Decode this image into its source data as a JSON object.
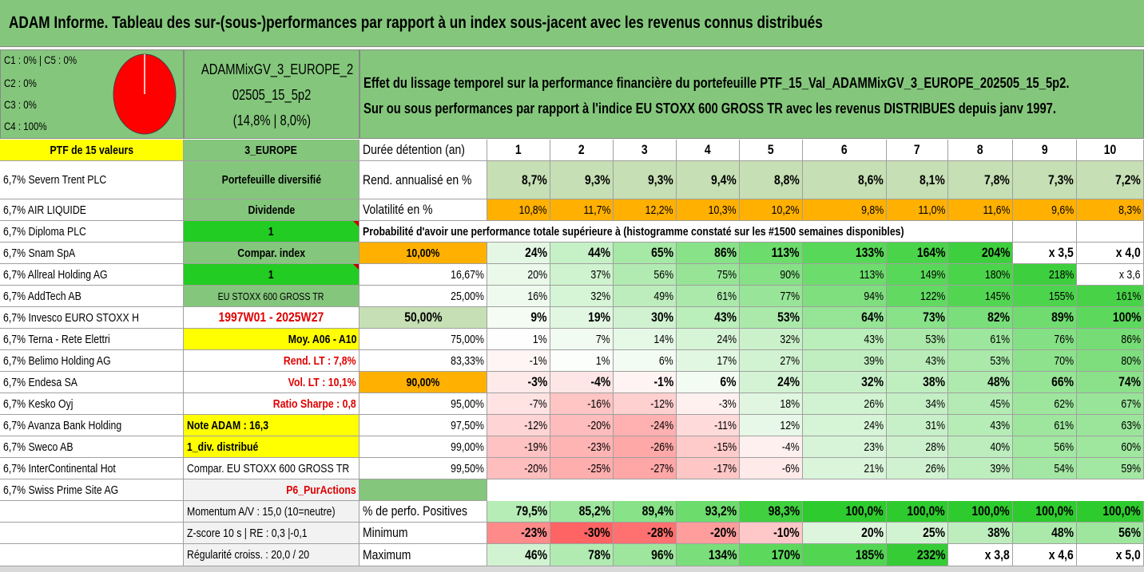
{
  "title": "ADAM Informe. Tableau des sur-(sous-)performances par rapport à un index sous-jacent avec les revenus connus distribués",
  "pie": {
    "lines": [
      "C1 : 0% | C5 : 0%",
      "C2 : 0%",
      "C3 : 0%",
      "C4 : 100%"
    ],
    "color": "#ff0000"
  },
  "portfolio_name": [
    "ADAMMixGV_3_EUROPE_2",
    "02505_15_5p2",
    "(14,8% | 8,0%)"
  ],
  "description": [
    "Effet du lissage temporel sur la performance financière du portefeuille PTF_15_Val_ADAMMixGV_3_EUROPE_202505_15_5p2.",
    "Sur ou sous performances par rapport à l'indice EU STOXX 600 GROSS TR avec les revenus DISTRIBUES depuis janv 1997."
  ],
  "col1": [
    "PTF de 15 valeurs",
    "6,7% Severn Trent PLC",
    "6,7% AIR LIQUIDE",
    "6,7% Diploma PLC",
    "6,7% Snam SpA",
    "6,7% Allreal Holding AG",
    "6,7% AddTech AB",
    "6,7% Invesco EURO STOXX H",
    "6,7% Terna - Rete Elettri",
    "6,7% Belimo Holding AG",
    "6,7% Endesa SA",
    "6,7% Kesko Oyj",
    "6,7% Avanza Bank Holding",
    "6,7% Sweco AB",
    "6,7% InterContinental Hot",
    "6,7% Swiss Prime Site AG",
    "",
    "",
    ""
  ],
  "col2": [
    "3_EUROPE",
    "Portefeuille diversifié",
    "Dividende",
    "1",
    "Compar. index",
    "1",
    "EU STOXX 600 GROSS TR",
    "1997W01 - 2025W27",
    "Moy. A06 - A10",
    "Rend. LT : 7,8%",
    "Vol. LT : 10,1%",
    "Ratio Sharpe : 0,8",
    "Note ADAM : 16,3",
    "1_div. distribué",
    "Compar. EU STOXX 600 GROSS TR",
    "P6_PurActions",
    "Momentum A/V : 15,0 (10=neutre)",
    "Z-score 10 s | RE : 0,3 |-0,1",
    "Régularité croiss. : 20,0 / 20"
  ],
  "col3": [
    "Durée détention (an)",
    "Rend. annualisé en %",
    "Volatilité en %",
    "Probabilité d'avoir une performance totale supérieure à (histogramme constaté sur les #1500 semaines disponibles)",
    "10,00%",
    "16,67%",
    "25,00%",
    "50,00%",
    "75,00%",
    "83,33%",
    "90,00%",
    "95,00%",
    "97,50%",
    "99,00%",
    "99,50%",
    "",
    "% de perfo. Positives",
    "Minimum",
    "Maximum"
  ],
  "years": [
    "1",
    "2",
    "3",
    "4",
    "5",
    "6",
    "7",
    "8",
    "9",
    "10"
  ],
  "rows": {
    "rend": [
      "8,7%",
      "9,3%",
      "9,3%",
      "9,4%",
      "8,8%",
      "8,6%",
      "8,1%",
      "7,8%",
      "7,3%",
      "7,2%"
    ],
    "vol": [
      "10,8%",
      "11,7%",
      "12,2%",
      "10,3%",
      "10,2%",
      "9,8%",
      "11,0%",
      "11,6%",
      "9,6%",
      "8,3%"
    ],
    "q10": [
      "24%",
      "44%",
      "65%",
      "86%",
      "113%",
      "133%",
      "164%",
      "204%",
      "x 3,5",
      "x 4,0"
    ],
    "q16": [
      "20%",
      "37%",
      "56%",
      "75%",
      "90%",
      "113%",
      "149%",
      "180%",
      "218%",
      "x 3,6"
    ],
    "q25": [
      "16%",
      "32%",
      "49%",
      "61%",
      "77%",
      "94%",
      "122%",
      "145%",
      "155%",
      "161%"
    ],
    "q50": [
      "9%",
      "19%",
      "30%",
      "43%",
      "53%",
      "64%",
      "73%",
      "82%",
      "89%",
      "100%"
    ],
    "q75": [
      "1%",
      "7%",
      "14%",
      "24%",
      "32%",
      "43%",
      "53%",
      "61%",
      "76%",
      "86%"
    ],
    "q83": [
      "-1%",
      "1%",
      "6%",
      "17%",
      "27%",
      "39%",
      "43%",
      "53%",
      "70%",
      "80%"
    ],
    "q90": [
      "-3%",
      "-4%",
      "-1%",
      "6%",
      "24%",
      "32%",
      "38%",
      "48%",
      "66%",
      "74%"
    ],
    "q95": [
      "-7%",
      "-16%",
      "-12%",
      "-3%",
      "18%",
      "26%",
      "34%",
      "45%",
      "62%",
      "67%"
    ],
    "q97": [
      "-12%",
      "-20%",
      "-24%",
      "-11%",
      "12%",
      "24%",
      "31%",
      "43%",
      "61%",
      "63%"
    ],
    "q99": [
      "-19%",
      "-23%",
      "-26%",
      "-15%",
      "-4%",
      "23%",
      "28%",
      "40%",
      "56%",
      "60%"
    ],
    "q995": [
      "-20%",
      "-25%",
      "-27%",
      "-17%",
      "-6%",
      "21%",
      "26%",
      "39%",
      "54%",
      "59%"
    ],
    "pos": [
      "79,5%",
      "85,2%",
      "89,4%",
      "93,2%",
      "98,3%",
      "100,0%",
      "100,0%",
      "100,0%",
      "100,0%",
      "100,0%"
    ],
    "min": [
      "-23%",
      "-30%",
      "-28%",
      "-20%",
      "-10%",
      "20%",
      "25%",
      "38%",
      "48%",
      "56%"
    ],
    "max": [
      "46%",
      "78%",
      "96%",
      "134%",
      "170%",
      "185%",
      "232%",
      "x 3,8",
      "x 4,6",
      "x 5,0"
    ]
  },
  "row_bg": {
    "rend": [
      "#c6dfb4",
      "#c6dfb4",
      "#c6dfb4",
      "#c6dfb4",
      "#c6dfb4",
      "#c6dfb4",
      "#c6dfb4",
      "#c6dfb4",
      "#c6dfb4",
      "#c6dfb4"
    ],
    "vol": [
      "#ffb000",
      "#ffb000",
      "#ffb000",
      "#ffb000",
      "#ffb000",
      "#ffb000",
      "#ffb000",
      "#ffb000",
      "#ffb000",
      "#ffb000"
    ],
    "q10": [
      "#e4f7e4",
      "#c6f0c6",
      "#a6e8a6",
      "#88e288",
      "#6cdc6c",
      "#58d858",
      "#4ad44a",
      "#3ecf3e",
      "#ffffff",
      "#ffffff"
    ],
    "q16": [
      "#eaf9ea",
      "#cff3cf",
      "#b2ebb2",
      "#97e497",
      "#86e086",
      "#6cdc6c",
      "#58d858",
      "#4ad44a",
      "#3ecf3e",
      "#ffffff"
    ],
    "q25": [
      "#eefaee",
      "#d6f4d6",
      "#bdedbd",
      "#aae9aa",
      "#98e498",
      "#7fdf7f",
      "#62da62",
      "#52d652",
      "#4cd44c",
      "#48d248"
    ],
    "q50": [
      "#f4fcf4",
      "#e2f7e2",
      "#d0f2d0",
      "#baeeba",
      "#aae9aa",
      "#96e496",
      "#88e288",
      "#7ade7a",
      "#70dc70",
      "#5cd95c"
    ],
    "q75": [
      "#fdfefd",
      "#f1fbf1",
      "#e6f8e6",
      "#d6f4d6",
      "#cbf1cb",
      "#baeeba",
      "#aae9aa",
      "#9de69d",
      "#84e084",
      "#76dd76"
    ],
    "q83": [
      "#fff5f5",
      "#fbfefb",
      "#f3fcf3",
      "#e2f7e2",
      "#d2f3d2",
      "#c0eec0",
      "#b9ecb9",
      "#aae9aa",
      "#8ee28e",
      "#7ede7e"
    ],
    "q90": [
      "#ffeaea",
      "#ffe6e6",
      "#fff3f3",
      "#f3fcf3",
      "#d4f3d4",
      "#c8f0c8",
      "#bfeebf",
      "#aeeaae",
      "#96e496",
      "#8ae18a"
    ],
    "q95": [
      "#ffe2e2",
      "#ffc4c4",
      "#ffd0d0",
      "#fff0f0",
      "#e0f6e0",
      "#d2f3d2",
      "#c4efc4",
      "#b4ebb4",
      "#9ee69e",
      "#98e498"
    ],
    "q97": [
      "#ffd4d4",
      "#ffbcbc",
      "#ffb0b0",
      "#ffdada",
      "#e8f8e8",
      "#d6f4d6",
      "#c8f0c8",
      "#b6ecb6",
      "#9ee69e",
      "#9be59b"
    ],
    "q99": [
      "#ffc2c2",
      "#ffb4b4",
      "#ffa8a8",
      "#ffcaca",
      "#fff0f0",
      "#d8f4d8",
      "#cdf1cd",
      "#bdedbd",
      "#a2e7a2",
      "#9fe69f"
    ],
    "q995": [
      "#ffbebe",
      "#ffaeae",
      "#ffa6a6",
      "#ffc6c6",
      "#ffeaea",
      "#daf5da",
      "#d0f2d0",
      "#beedbe",
      "#a4e7a4",
      "#a2e7a2"
    ],
    "pos": [
      "#b6ecb6",
      "#9ee69e",
      "#88e288",
      "#6cdc6c",
      "#40d040",
      "#2ecb2e",
      "#2ecb2e",
      "#2ecb2e",
      "#2ecb2e",
      "#2ecb2e"
    ],
    "min": [
      "#ff8a8a",
      "#ff6464",
      "#ff7070",
      "#ff9c9c",
      "#ffc8c8",
      "#dcf5dc",
      "#d2f3d2",
      "#bdedbd",
      "#aae9aa",
      "#9ee69e"
    ],
    "max": [
      "#d2f3d2",
      "#b2ebb2",
      "#9ee69e",
      "#7ade7a",
      "#5cd95c",
      "#52d652",
      "#36cc36",
      "#ffffff",
      "#ffffff",
      "#ffffff"
    ]
  },
  "colors": {
    "header_green": "#84c77c",
    "yellow": "#ffff00",
    "bright_green": "#22cc22",
    "orange": "#ffb000",
    "pale_green": "#c6dfb4",
    "light_grey": "#f2f2f2",
    "red_text": "#e00000"
  }
}
